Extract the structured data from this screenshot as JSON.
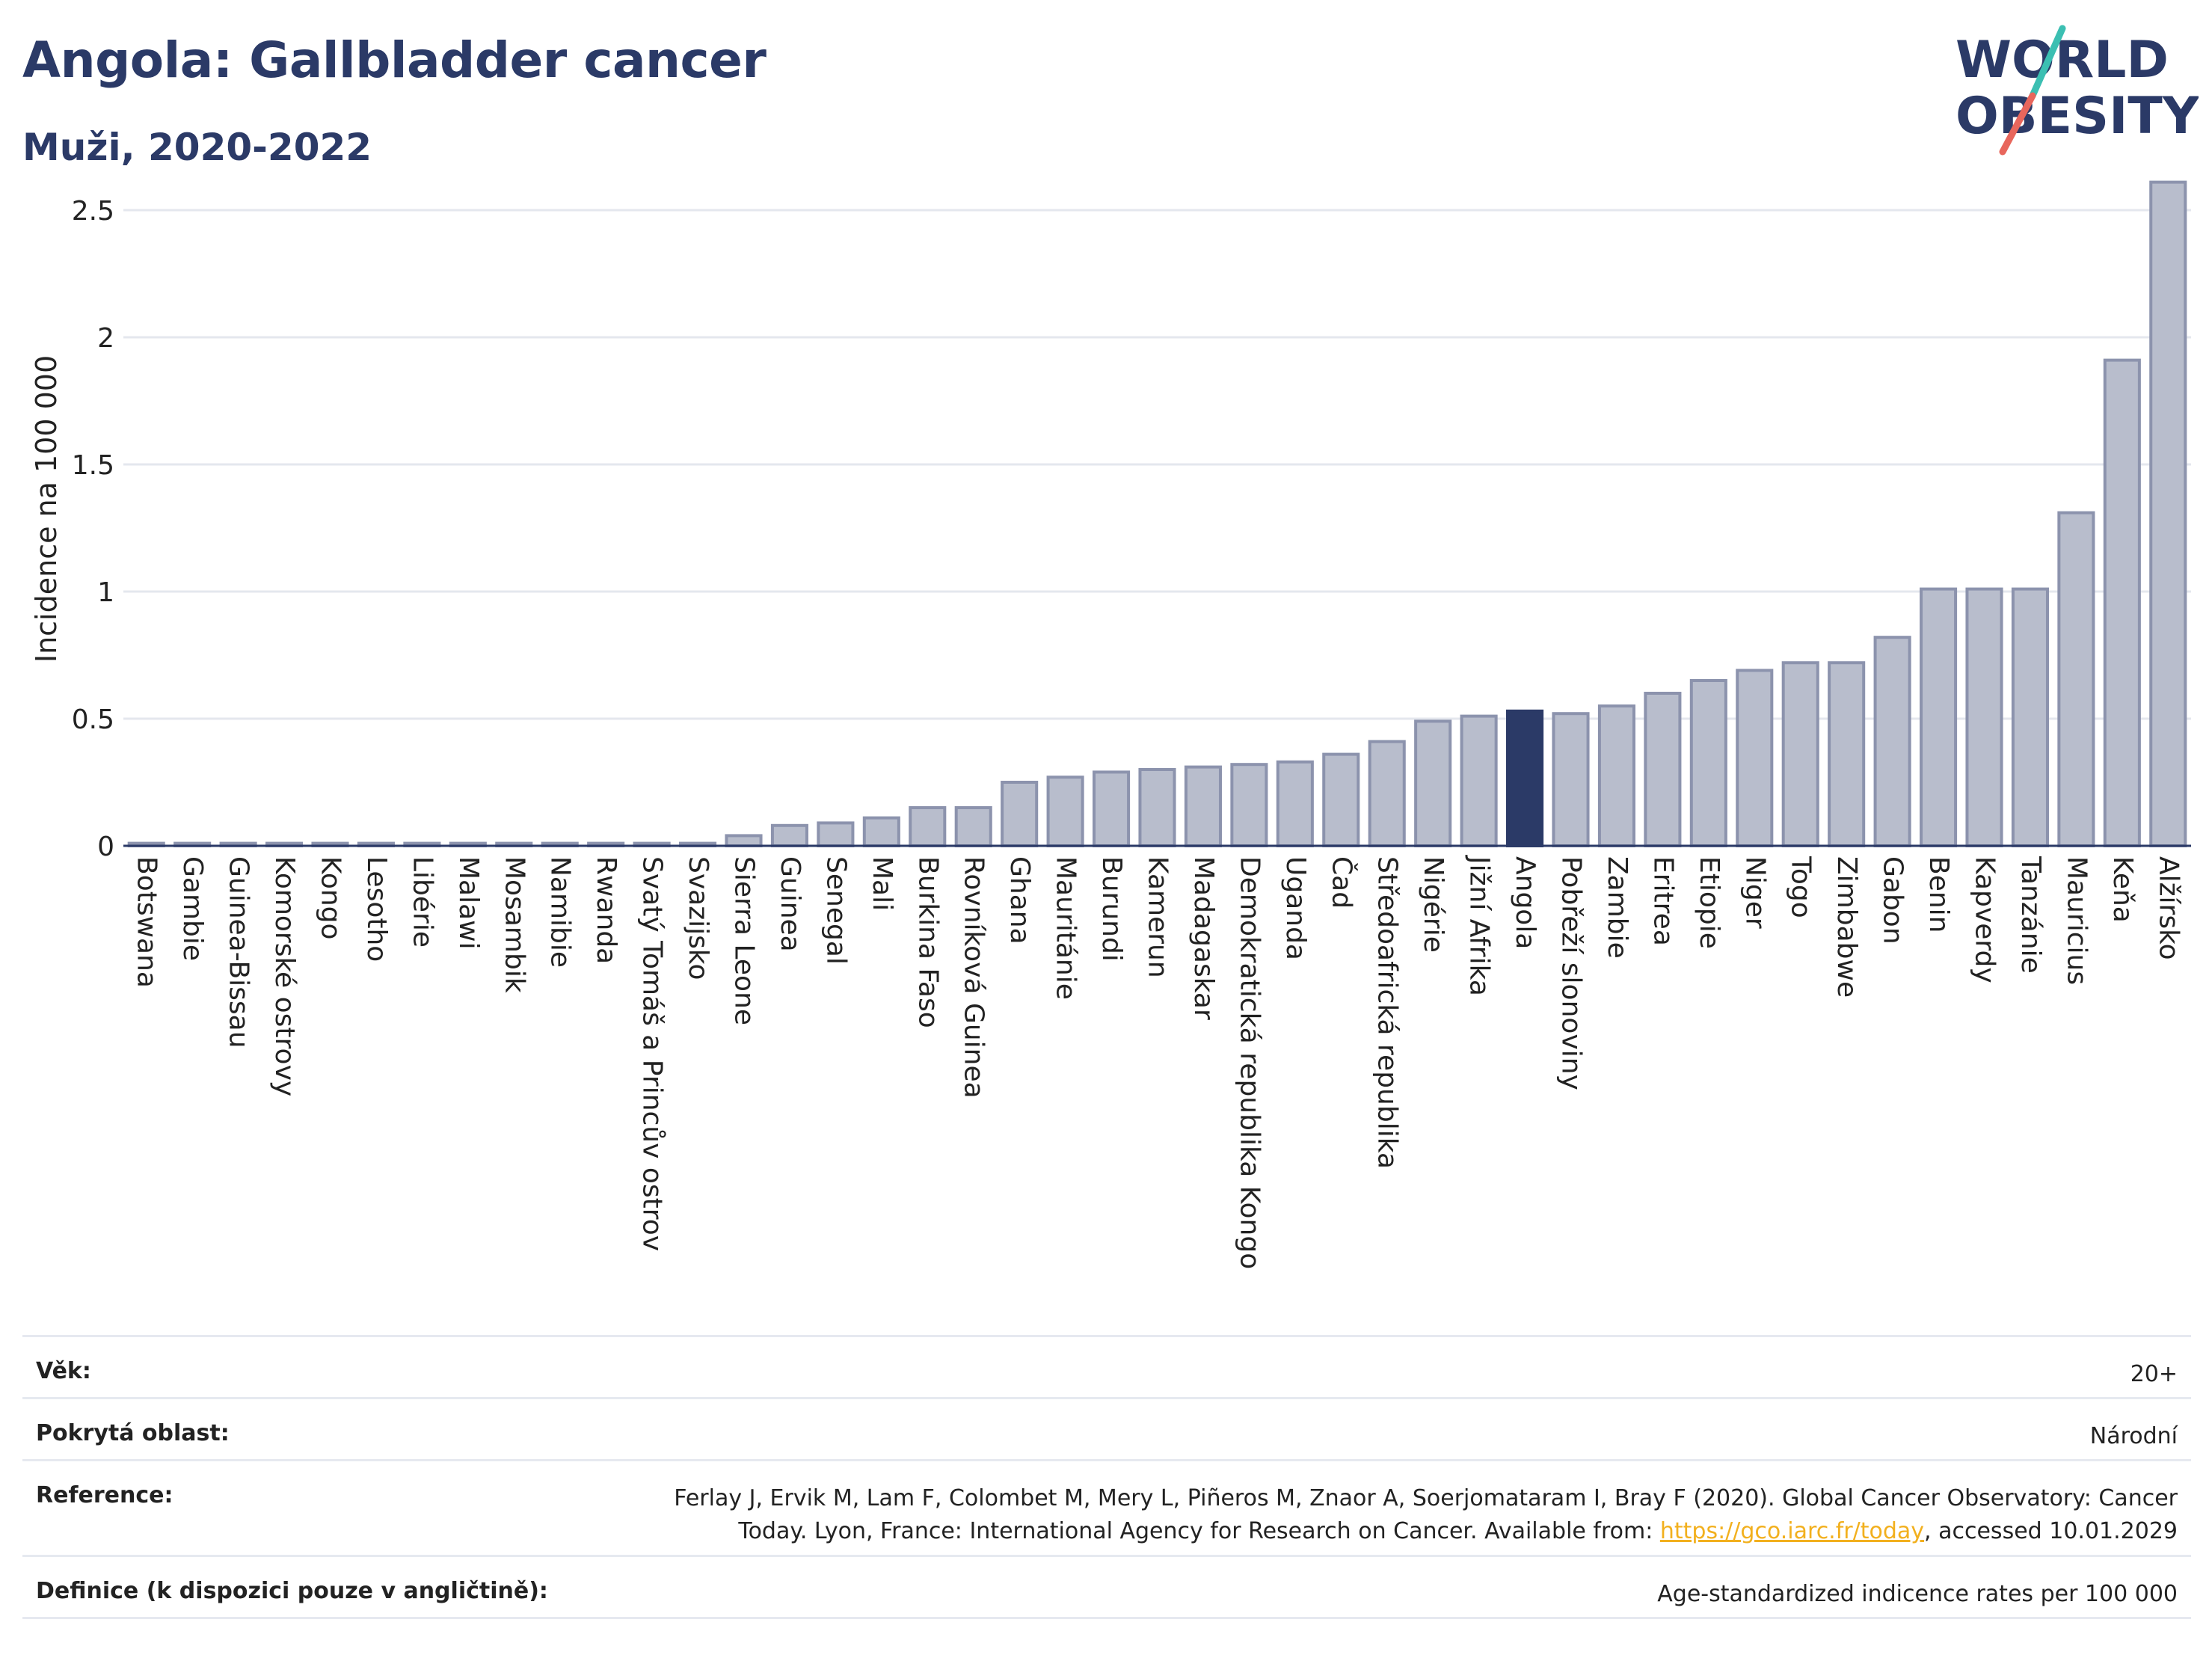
{
  "header": {
    "title": "Angola: Gallbladder cancer",
    "subtitle": "Muži, 2020-2022"
  },
  "logo": {
    "line1": "WORLD",
    "line2": "OBESITY",
    "colors": {
      "text": "#2b3a67",
      "slash_top": "#3bbfb2",
      "slash_bottom": "#e8665c"
    }
  },
  "chart_data": {
    "type": "bar",
    "ylabel": "Incidence na 100 000",
    "xlabel": "",
    "ylim": [
      0,
      2.65
    ],
    "yticks": [
      0,
      0.5,
      1,
      1.5,
      2,
      2.5
    ],
    "ytick_labels": [
      "0",
      "0.5",
      "1",
      "1.5",
      "2",
      "2.5"
    ],
    "grid": true,
    "highlight": "Angola",
    "colors": {
      "bar": "#b8bdcc",
      "bar_border": "#8c93ad",
      "highlight": "#2b3a67"
    },
    "categories": [
      "Botswana",
      "Gambie",
      "Guinea-Bissau",
      "Komorské ostrovy",
      "Kongo",
      "Lesotho",
      "Libérie",
      "Malawi",
      "Mosambik",
      "Namibie",
      "Rwanda",
      "Svatý Tomáš a Princův ostrov",
      "Svazijsko",
      "Sierra Leone",
      "Guinea",
      "Senegal",
      "Mali",
      "Burkina Faso",
      "Rovníková Guinea",
      "Ghana",
      "Mauritánie",
      "Burundi",
      "Kamerun",
      "Madagaskar",
      "Demokratická republika Kongo",
      "Uganda",
      "Čad",
      "Středoafrická republika",
      "Nigérie",
      "Jižní Afrika",
      "Angola",
      "Pobřeží slonoviny",
      "Zambie",
      "Eritrea",
      "Etiopie",
      "Niger",
      "Togo",
      "Zimbabwe",
      "Gabon",
      "Benin",
      "Kapverdy",
      "Tanzánie",
      "Mauricius",
      "Keňa",
      "Alžírsko"
    ],
    "values": [
      0.01,
      0.01,
      0.01,
      0.01,
      0.01,
      0.01,
      0.01,
      0.01,
      0.01,
      0.01,
      0.01,
      0.01,
      0.01,
      0.04,
      0.08,
      0.09,
      0.11,
      0.15,
      0.15,
      0.25,
      0.27,
      0.29,
      0.3,
      0.31,
      0.32,
      0.33,
      0.36,
      0.41,
      0.49,
      0.51,
      0.53,
      0.52,
      0.55,
      0.6,
      0.65,
      0.69,
      0.72,
      0.72,
      0.82,
      1.01,
      1.01,
      1.01,
      1.31,
      1.91,
      2.61
    ]
  },
  "info": {
    "age": {
      "label": "Věk:",
      "value": "20+"
    },
    "area": {
      "label": "Pokrytá oblast:",
      "value": "Národní"
    },
    "reference": {
      "label": "Reference:",
      "line1": "Ferlay J, Ervik M, Lam F, Colombet M, Mery L, Piñeros M, Znaor A, Soerjomataram I, Bray F (2020). Global Cancer Observatory: Cancer",
      "line2_pre": "Today. Lyon, France: International Agency for Research on Cancer. Available from: ",
      "link": "https://gco.iarc.fr/today",
      "line2_post": ", accessed 10.01.2029"
    },
    "definition": {
      "label": "Definice (k dispozici pouze v angličtině):",
      "value": "Age-standardized indicence rates per 100 000"
    }
  }
}
